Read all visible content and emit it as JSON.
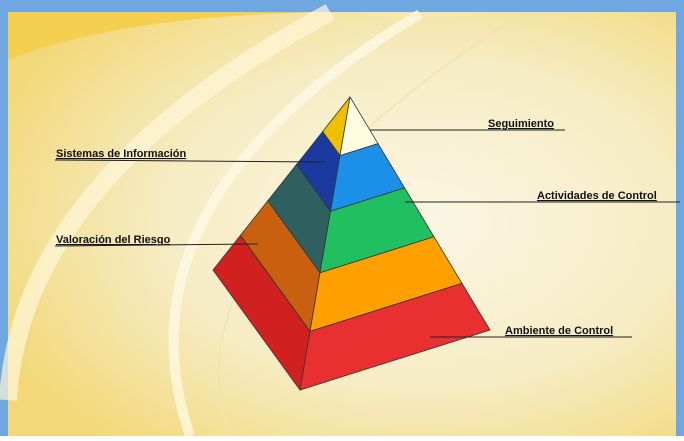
{
  "labels": {
    "top": "Seguimiento",
    "second": "Sistemas de Información",
    "third": "Actividades de Control",
    "fourth": "Valoración del Riesgo",
    "base": "Ambiente de Control"
  }
}
